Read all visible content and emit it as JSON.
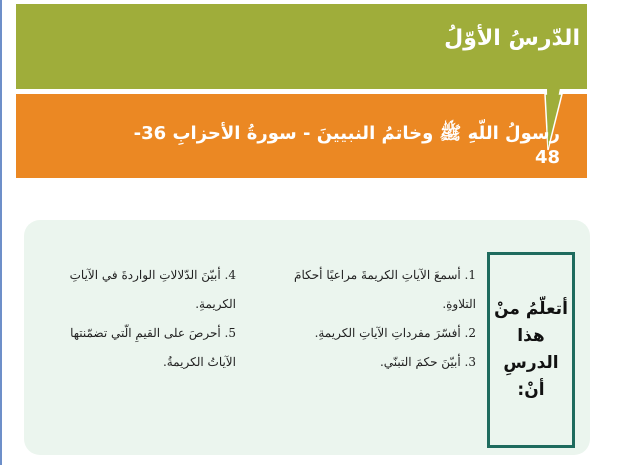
{
  "header": {
    "lesson_label": "الدّرسُ الأوّلُ",
    "title": "رسولُ اللّهِ ﷺ وخاتمُ النبيينَ - سورةُ الأحزابِ 36-48"
  },
  "objectives": {
    "heading": "أتعلّمُ منْ هذا الدرسِ أنْ:",
    "items": [
      "1. أسمعَ الآياتِ الكريمةَ مراعيًا أحكامَ التلاوةِ.",
      "2. أفسّرَ مفرداتِ الآياتِ الكريمةِ.",
      "3. أبيّنَ حكمَ التبنّي.",
      "4. أبيّنَ الدّلالاتِ الواردةَ في الآياتِ الكريمةِ.",
      "5. أحرصَ على القيمِ الّتي تضمّنتها الآياتُ الكريمةُ."
    ]
  },
  "colors": {
    "green": "#9fad3a",
    "orange": "#eb8823",
    "teal": "#1e6b5e",
    "panel": "#ebf5ee"
  }
}
